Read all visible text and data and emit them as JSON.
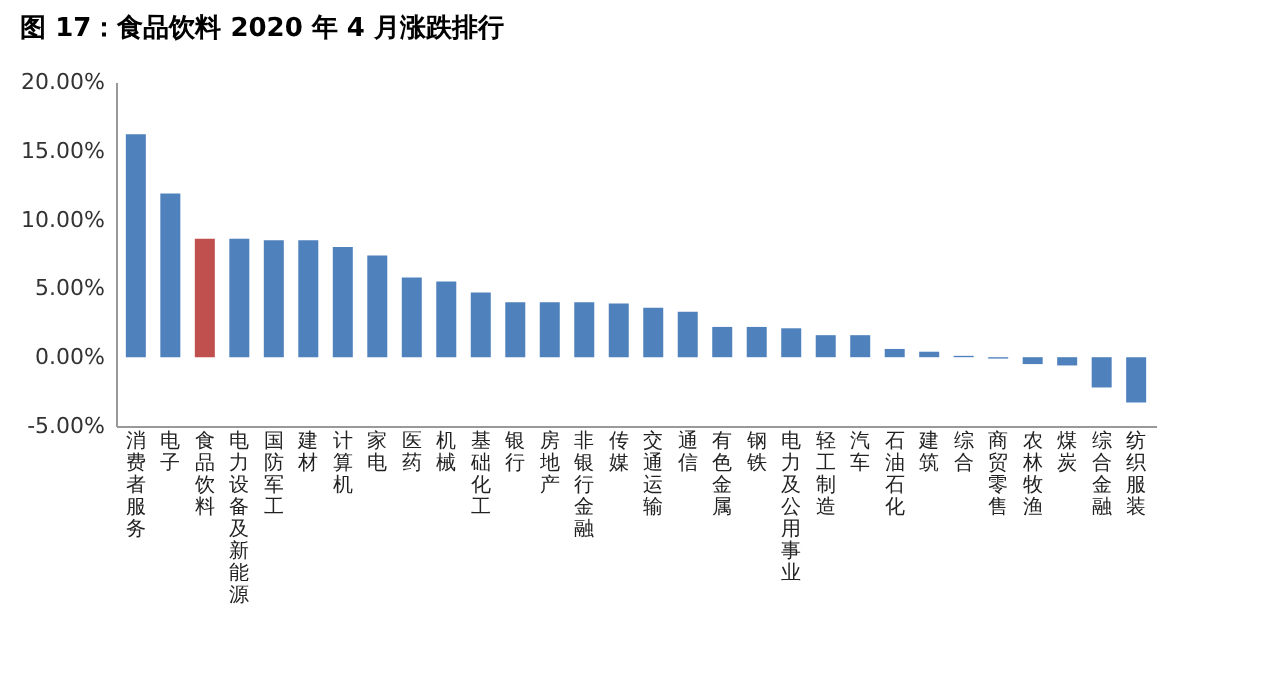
{
  "chart_data": {
    "type": "bar",
    "title": "图 17：食品饮料 2020 年 4 月涨跌排行",
    "categories": [
      "消费者服务",
      "电子",
      "食品饮料",
      "电力设备及新能源",
      "国防军工",
      "建材",
      "计算机",
      "家电",
      "医药",
      "机械",
      "基础化工",
      "银行",
      "房地产",
      "非银行金融",
      "传媒",
      "交通运输",
      "通信",
      "有色金属",
      "钢铁",
      "电力及公用事业",
      "轻工制造",
      "汽车",
      "石油石化",
      "建筑",
      "综合",
      "商贸零售",
      "农林牧渔",
      "煤炭",
      "综合金融",
      "纺织服装"
    ],
    "values": [
      16.2,
      11.9,
      8.6,
      8.6,
      8.5,
      8.5,
      8.0,
      7.4,
      5.8,
      5.5,
      4.7,
      4.0,
      4.0,
      4.0,
      3.9,
      3.6,
      3.3,
      2.2,
      2.2,
      2.1,
      1.6,
      1.6,
      0.6,
      0.4,
      0.1,
      -0.1,
      -0.5,
      -0.6,
      -2.2,
      -3.3
    ],
    "colors": [
      "#4f81bd",
      "#4f81bd",
      "#c0504d",
      "#4f81bd",
      "#4f81bd",
      "#4f81bd",
      "#4f81bd",
      "#4f81bd",
      "#4f81bd",
      "#4f81bd",
      "#4f81bd",
      "#4f81bd",
      "#4f81bd",
      "#4f81bd",
      "#4f81bd",
      "#4f81bd",
      "#4f81bd",
      "#4f81bd",
      "#4f81bd",
      "#4f81bd",
      "#4f81bd",
      "#4f81bd",
      "#4f81bd",
      "#4f81bd",
      "#4f81bd",
      "#4f81bd",
      "#4f81bd",
      "#4f81bd",
      "#4f81bd",
      "#4f81bd"
    ],
    "ylim": [
      -5,
      20
    ],
    "yticks": [
      {
        "value": -5,
        "label": "-5.00%"
      },
      {
        "value": 0,
        "label": "0.00%"
      },
      {
        "value": 5,
        "label": "5.00%"
      },
      {
        "value": 10,
        "label": "10.00%"
      },
      {
        "value": 15,
        "label": "15.00%"
      },
      {
        "value": 20,
        "label": "20.00%"
      }
    ],
    "grid": false,
    "legend": false
  }
}
